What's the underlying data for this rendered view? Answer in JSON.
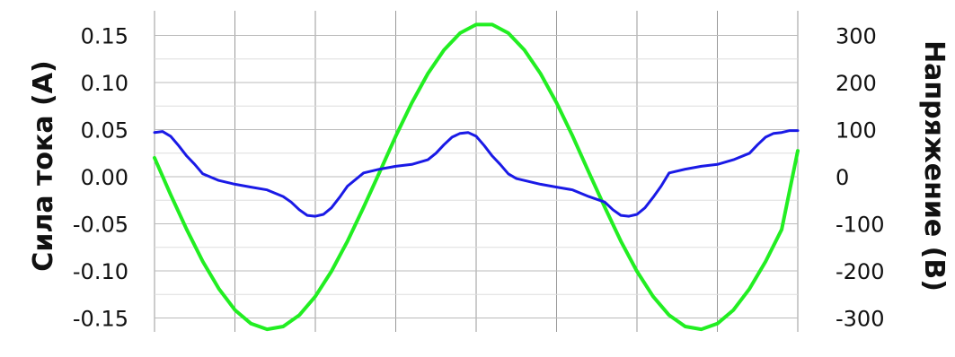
{
  "chart_data": {
    "type": "line",
    "title": "",
    "xlabel": "",
    "ylabel": "Сила тока (А)",
    "y2label": "Напряжение (В)",
    "ylim": [
      -0.17,
      0.17
    ],
    "y2lim": [
      -340,
      340
    ],
    "yticks": [
      "0.15",
      "0.10",
      "0.05",
      "0.00",
      "-0.05",
      "-0.10",
      "-0.15"
    ],
    "y2ticks": [
      "300",
      "200",
      "100",
      "0",
      "-100",
      "-200",
      "-300"
    ],
    "grid": true,
    "xlim": [
      0,
      40
    ],
    "series": [
      {
        "axis": "right",
        "color": "#22ee22",
        "x": [
          0,
          1,
          2,
          3,
          4,
          5,
          6,
          7,
          8,
          9,
          10,
          11,
          12,
          13,
          14,
          15,
          16,
          17,
          18,
          19,
          20,
          21,
          22,
          23,
          24,
          25,
          26,
          27,
          28,
          29,
          30,
          31,
          32,
          33,
          34,
          35,
          36,
          37,
          38,
          39,
          40
        ],
        "values": [
          40,
          -38,
          -112,
          -180,
          -238,
          -283,
          -312,
          -324,
          -318,
          -294,
          -254,
          -201,
          -137,
          -65,
          10,
          86,
          157,
          219,
          269,
          305,
          323,
          323,
          305,
          269,
          219,
          157,
          86,
          10,
          -65,
          -137,
          -201,
          -254,
          -294,
          -318,
          -324,
          -312,
          -283,
          -238,
          -180,
          -112,
          55
        ]
      },
      {
        "axis": "left",
        "color": "#1a1ae6",
        "x": [
          0,
          0.5,
          1,
          1.5,
          2,
          2.5,
          3,
          4,
          5,
          6,
          7,
          8,
          8.5,
          9,
          9.5,
          10,
          10.5,
          11,
          11.5,
          12,
          13,
          14,
          15,
          16,
          17,
          17.5,
          18,
          18.5,
          19,
          19.5,
          20,
          20.5,
          21,
          21.5,
          22,
          22.5,
          23,
          24,
          25,
          26,
          27,
          28,
          28.5,
          29,
          29.5,
          30,
          30.5,
          31,
          31.5,
          32,
          33,
          34,
          35,
          36,
          37,
          37.5,
          38,
          38.5,
          39,
          39.5,
          40
        ],
        "values": [
          0.047,
          0.048,
          0.043,
          0.033,
          0.022,
          0.013,
          0.003,
          -0.004,
          -0.008,
          -0.011,
          -0.014,
          -0.021,
          -0.027,
          -0.035,
          -0.041,
          -0.042,
          -0.04,
          -0.033,
          -0.022,
          -0.01,
          0.004,
          0.008,
          0.011,
          0.013,
          0.018,
          0.025,
          0.034,
          0.042,
          0.046,
          0.047,
          0.043,
          0.033,
          0.022,
          0.013,
          0.003,
          -0.002,
          -0.004,
          -0.008,
          -0.011,
          -0.014,
          -0.021,
          -0.027,
          -0.035,
          -0.041,
          -0.042,
          -0.04,
          -0.033,
          -0.022,
          -0.01,
          0.004,
          0.008,
          0.011,
          0.013,
          0.018,
          0.025,
          0.034,
          0.042,
          0.046,
          0.047,
          0.049,
          0.049
        ]
      }
    ]
  }
}
